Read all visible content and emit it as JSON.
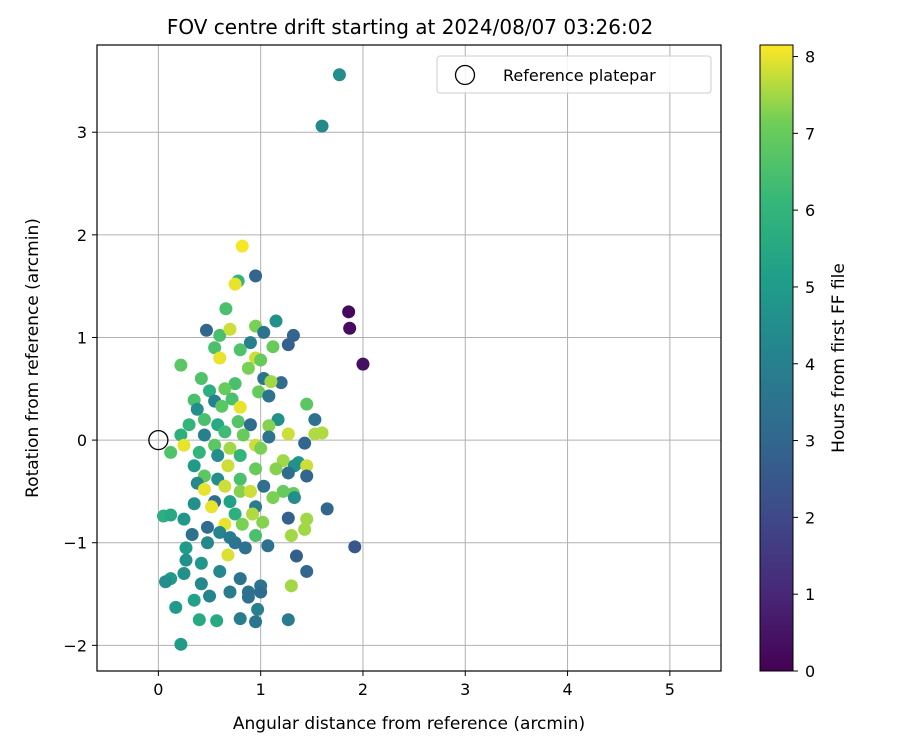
{
  "chart_data": {
    "type": "scatter",
    "title": "FOV centre drift starting at 2024/08/07 03:26:02",
    "xlabel": "Angular distance from reference (arcmin)",
    "ylabel": "Rotation from reference (arcmin)",
    "xlim": [
      -0.6,
      5.5
    ],
    "ylim": [
      -2.25,
      3.85
    ],
    "xticks": [
      0,
      1,
      2,
      3,
      4,
      5
    ],
    "yticks": [
      -2,
      -1,
      0,
      1,
      2,
      3
    ],
    "grid": true,
    "legend": {
      "position": "top-right",
      "entries": [
        "Reference platepar"
      ]
    },
    "reference_point": {
      "x": 0,
      "y": 0
    },
    "colorbar": {
      "label": "Hours from first FF file",
      "min": 0,
      "max": 8.15,
      "ticks": [
        0,
        1,
        2,
        3,
        4,
        5,
        6,
        7,
        8
      ],
      "colormap": "viridis"
    },
    "points": [
      {
        "x": 1.86,
        "y": 1.25,
        "h": 0.2
      },
      {
        "x": 1.87,
        "y": 1.09,
        "h": 0.3
      },
      {
        "x": 2.0,
        "y": 0.74,
        "h": 0.4
      },
      {
        "x": 1.77,
        "y": 3.56,
        "h": 4.5
      },
      {
        "x": 1.6,
        "y": 3.06,
        "h": 4.3
      },
      {
        "x": 0.82,
        "y": 1.89,
        "h": 8.1
      },
      {
        "x": 0.95,
        "y": 1.6,
        "h": 3.0
      },
      {
        "x": 0.78,
        "y": 1.55,
        "h": 6.0
      },
      {
        "x": 0.75,
        "y": 1.52,
        "h": 8.0
      },
      {
        "x": 0.66,
        "y": 1.28,
        "h": 6.5
      },
      {
        "x": 1.15,
        "y": 1.16,
        "h": 4.6
      },
      {
        "x": 0.95,
        "y": 1.11,
        "h": 7.2
      },
      {
        "x": 0.47,
        "y": 1.07,
        "h": 3.0
      },
      {
        "x": 1.03,
        "y": 1.05,
        "h": 3.5
      },
      {
        "x": 1.32,
        "y": 1.02,
        "h": 3.0
      },
      {
        "x": 0.6,
        "y": 1.02,
        "h": 6.5
      },
      {
        "x": 0.7,
        "y": 1.08,
        "h": 7.8
      },
      {
        "x": 1.27,
        "y": 0.93,
        "h": 2.8
      },
      {
        "x": 0.9,
        "y": 0.95,
        "h": 4.0
      },
      {
        "x": 1.12,
        "y": 0.91,
        "h": 7.0
      },
      {
        "x": 0.22,
        "y": 0.73,
        "h": 6.8
      },
      {
        "x": 0.55,
        "y": 0.9,
        "h": 6.5
      },
      {
        "x": 0.6,
        "y": 0.8,
        "h": 8.0
      },
      {
        "x": 0.8,
        "y": 0.88,
        "h": 6.6
      },
      {
        "x": 0.95,
        "y": 0.8,
        "h": 7.8
      },
      {
        "x": 1.0,
        "y": 0.78,
        "h": 7.0
      },
      {
        "x": 0.88,
        "y": 0.7,
        "h": 7.2
      },
      {
        "x": 0.42,
        "y": 0.6,
        "h": 6.6
      },
      {
        "x": 1.03,
        "y": 0.6,
        "h": 3.5
      },
      {
        "x": 1.2,
        "y": 0.56,
        "h": 3.2
      },
      {
        "x": 1.1,
        "y": 0.57,
        "h": 7.5
      },
      {
        "x": 0.75,
        "y": 0.55,
        "h": 6.5
      },
      {
        "x": 0.5,
        "y": 0.48,
        "h": 5.8
      },
      {
        "x": 0.65,
        "y": 0.5,
        "h": 7.0
      },
      {
        "x": 0.98,
        "y": 0.47,
        "h": 7.0
      },
      {
        "x": 1.08,
        "y": 0.43,
        "h": 3.5
      },
      {
        "x": 0.35,
        "y": 0.39,
        "h": 6.5
      },
      {
        "x": 0.55,
        "y": 0.38,
        "h": 4.0
      },
      {
        "x": 0.72,
        "y": 0.4,
        "h": 6.5
      },
      {
        "x": 0.8,
        "y": 0.32,
        "h": 8.0
      },
      {
        "x": 0.38,
        "y": 0.3,
        "h": 4.5
      },
      {
        "x": 0.62,
        "y": 0.33,
        "h": 6.8
      },
      {
        "x": 1.45,
        "y": 0.35,
        "h": 6.8
      },
      {
        "x": 1.53,
        "y": 0.2,
        "h": 3.4
      },
      {
        "x": 1.17,
        "y": 0.2,
        "h": 4.6
      },
      {
        "x": 0.45,
        "y": 0.2,
        "h": 6.5
      },
      {
        "x": 0.3,
        "y": 0.15,
        "h": 6.0
      },
      {
        "x": 0.58,
        "y": 0.15,
        "h": 5.5
      },
      {
        "x": 0.78,
        "y": 0.18,
        "h": 6.7
      },
      {
        "x": 1.08,
        "y": 0.14,
        "h": 7.3
      },
      {
        "x": 0.9,
        "y": 0.15,
        "h": 3.2
      },
      {
        "x": 0.22,
        "y": 0.05,
        "h": 5.8
      },
      {
        "x": 0.45,
        "y": 0.05,
        "h": 4.0
      },
      {
        "x": 0.65,
        "y": 0.08,
        "h": 6.3
      },
      {
        "x": 0.83,
        "y": 0.05,
        "h": 7.0
      },
      {
        "x": 1.08,
        "y": 0.03,
        "h": 3.5
      },
      {
        "x": 1.27,
        "y": 0.06,
        "h": 7.8
      },
      {
        "x": 1.53,
        "y": 0.06,
        "h": 7.6
      },
      {
        "x": 1.6,
        "y": 0.07,
        "h": 7.6
      },
      {
        "x": 0.25,
        "y": -0.05,
        "h": 8.0
      },
      {
        "x": 0.12,
        "y": -0.12,
        "h": 6.6
      },
      {
        "x": 0.55,
        "y": -0.05,
        "h": 6.8
      },
      {
        "x": 0.7,
        "y": -0.08,
        "h": 7.5
      },
      {
        "x": 0.95,
        "y": -0.05,
        "h": 7.8
      },
      {
        "x": 1.0,
        "y": -0.08,
        "h": 7.2
      },
      {
        "x": 1.43,
        "y": -0.03,
        "h": 3.0
      },
      {
        "x": 0.4,
        "y": -0.12,
        "h": 6.0
      },
      {
        "x": 0.58,
        "y": -0.15,
        "h": 4.5
      },
      {
        "x": 0.8,
        "y": -0.15,
        "h": 6.0
      },
      {
        "x": 1.37,
        "y": -0.22,
        "h": 4.8
      },
      {
        "x": 1.22,
        "y": -0.2,
        "h": 7.5
      },
      {
        "x": 1.33,
        "y": -0.25,
        "h": 4.6
      },
      {
        "x": 1.45,
        "y": -0.25,
        "h": 7.8
      },
      {
        "x": 0.35,
        "y": -0.25,
        "h": 5.0
      },
      {
        "x": 0.68,
        "y": -0.25,
        "h": 7.8
      },
      {
        "x": 0.95,
        "y": -0.28,
        "h": 7.0
      },
      {
        "x": 1.15,
        "y": -0.28,
        "h": 7.3
      },
      {
        "x": 1.27,
        "y": -0.32,
        "h": 3.2
      },
      {
        "x": 1.45,
        "y": -0.35,
        "h": 3.0
      },
      {
        "x": 0.45,
        "y": -0.35,
        "h": 6.8
      },
      {
        "x": 0.58,
        "y": -0.38,
        "h": 4.5
      },
      {
        "x": 0.8,
        "y": -0.38,
        "h": 6.5
      },
      {
        "x": 0.38,
        "y": -0.42,
        "h": 4.3
      },
      {
        "x": 0.65,
        "y": -0.45,
        "h": 7.8
      },
      {
        "x": 1.03,
        "y": -0.45,
        "h": 3.4
      },
      {
        "x": 0.45,
        "y": -0.48,
        "h": 8.0
      },
      {
        "x": 0.8,
        "y": -0.5,
        "h": 7.3
      },
      {
        "x": 0.9,
        "y": -0.5,
        "h": 7.8
      },
      {
        "x": 1.22,
        "y": -0.5,
        "h": 7.0
      },
      {
        "x": 1.32,
        "y": -0.52,
        "h": 7.0
      },
      {
        "x": 1.33,
        "y": -0.56,
        "h": 4.5
      },
      {
        "x": 1.12,
        "y": -0.56,
        "h": 7.2
      },
      {
        "x": 0.55,
        "y": -0.6,
        "h": 3.3
      },
      {
        "x": 0.7,
        "y": -0.6,
        "h": 5.2
      },
      {
        "x": 0.35,
        "y": -0.62,
        "h": 4.6
      },
      {
        "x": 0.52,
        "y": -0.65,
        "h": 8.0
      },
      {
        "x": 0.95,
        "y": -0.65,
        "h": 3.8
      },
      {
        "x": 1.65,
        "y": -0.67,
        "h": 3.0
      },
      {
        "x": 0.75,
        "y": -0.72,
        "h": 5.8
      },
      {
        "x": 0.92,
        "y": -0.72,
        "h": 7.6
      },
      {
        "x": 0.05,
        "y": -0.74,
        "h": 5.8
      },
      {
        "x": 0.12,
        "y": -0.73,
        "h": 5.5
      },
      {
        "x": 1.27,
        "y": -0.76,
        "h": 2.8
      },
      {
        "x": 0.25,
        "y": -0.77,
        "h": 4.8
      },
      {
        "x": 1.02,
        "y": -0.8,
        "h": 7.3
      },
      {
        "x": 1.45,
        "y": -0.77,
        "h": 7.5
      },
      {
        "x": 0.48,
        "y": -0.85,
        "h": 3.2
      },
      {
        "x": 0.65,
        "y": -0.82,
        "h": 8.0
      },
      {
        "x": 0.82,
        "y": -0.82,
        "h": 7.2
      },
      {
        "x": 1.43,
        "y": -0.87,
        "h": 7.5
      },
      {
        "x": 0.33,
        "y": -0.92,
        "h": 3.4
      },
      {
        "x": 0.6,
        "y": -0.9,
        "h": 4.2
      },
      {
        "x": 0.7,
        "y": -0.95,
        "h": 3.8
      },
      {
        "x": 0.95,
        "y": -0.93,
        "h": 6.5
      },
      {
        "x": 1.3,
        "y": -0.93,
        "h": 7.5
      },
      {
        "x": 0.48,
        "y": -1.0,
        "h": 4.3
      },
      {
        "x": 0.75,
        "y": -1.0,
        "h": 3.6
      },
      {
        "x": 1.07,
        "y": -1.03,
        "h": 3.4
      },
      {
        "x": 1.92,
        "y": -1.04,
        "h": 2.5
      },
      {
        "x": 0.27,
        "y": -1.05,
        "h": 5.0
      },
      {
        "x": 0.85,
        "y": -1.05,
        "h": 3.4
      },
      {
        "x": 0.68,
        "y": -1.12,
        "h": 7.9
      },
      {
        "x": 1.35,
        "y": -1.13,
        "h": 2.7
      },
      {
        "x": 0.27,
        "y": -1.17,
        "h": 4.6
      },
      {
        "x": 0.42,
        "y": -1.2,
        "h": 4.8
      },
      {
        "x": 0.6,
        "y": -1.28,
        "h": 4.3
      },
      {
        "x": 1.45,
        "y": -1.28,
        "h": 3.0
      },
      {
        "x": 0.25,
        "y": -1.3,
        "h": 4.6
      },
      {
        "x": 0.12,
        "y": -1.35,
        "h": 5.0
      },
      {
        "x": 0.8,
        "y": -1.35,
        "h": 3.5
      },
      {
        "x": 0.07,
        "y": -1.38,
        "h": 4.5
      },
      {
        "x": 0.42,
        "y": -1.4,
        "h": 4.3
      },
      {
        "x": 1.0,
        "y": -1.42,
        "h": 3.6
      },
      {
        "x": 1.3,
        "y": -1.42,
        "h": 7.5
      },
      {
        "x": 0.7,
        "y": -1.48,
        "h": 3.8
      },
      {
        "x": 0.88,
        "y": -1.48,
        "h": 3.5
      },
      {
        "x": 1.0,
        "y": -1.48,
        "h": 3.2
      },
      {
        "x": 0.5,
        "y": -1.52,
        "h": 4.2
      },
      {
        "x": 0.88,
        "y": -1.53,
        "h": 3.4
      },
      {
        "x": 0.35,
        "y": -1.56,
        "h": 5.2
      },
      {
        "x": 0.17,
        "y": -1.63,
        "h": 5.0
      },
      {
        "x": 0.97,
        "y": -1.65,
        "h": 4.0
      },
      {
        "x": 0.4,
        "y": -1.75,
        "h": 5.5
      },
      {
        "x": 0.57,
        "y": -1.76,
        "h": 5.5
      },
      {
        "x": 0.8,
        "y": -1.74,
        "h": 3.8
      },
      {
        "x": 0.95,
        "y": -1.77,
        "h": 3.6
      },
      {
        "x": 1.27,
        "y": -1.75,
        "h": 3.8
      },
      {
        "x": 0.22,
        "y": -1.99,
        "h": 5.0
      }
    ]
  }
}
